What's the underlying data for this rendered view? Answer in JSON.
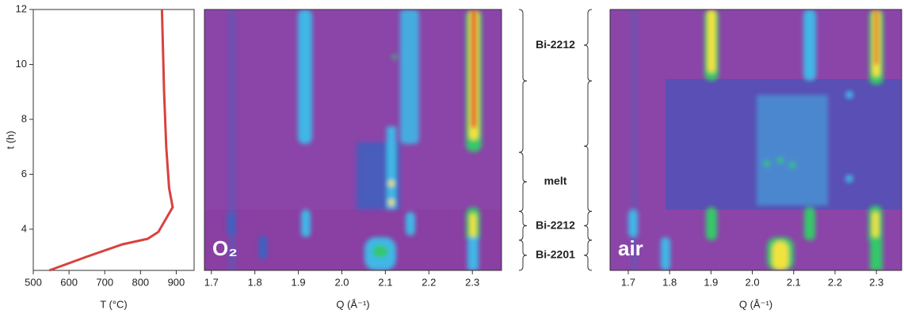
{
  "chart_data": [
    {
      "type": "line",
      "x_label": "T (°C)",
      "y_label": "t (h)",
      "xlim": [
        500,
        950
      ],
      "xticks": [
        500,
        600,
        700,
        800,
        900
      ],
      "ylim": [
        2.5,
        12
      ],
      "yticks": [
        4,
        6,
        8,
        10,
        12
      ],
      "series": [
        {
          "color": "#d9413e",
          "x": [
            545,
            650,
            750,
            820,
            850,
            890,
            880,
            872,
            866,
            862,
            860
          ],
          "values": [
            2.5,
            3.0,
            3.45,
            3.65,
            3.9,
            4.8,
            5.5,
            7,
            9,
            11,
            12
          ]
        }
      ]
    },
    {
      "type": "heatmap",
      "label": "O₂",
      "x_label": "Q (Å⁻¹)",
      "xlim": [
        1.684,
        2.367
      ],
      "xticks": [
        1.7,
        1.8,
        1.9,
        {
          "value": 2,
          "label": "2.0"
        },
        2.1,
        2.2,
        2.3
      ],
      "ylim": [
        2.5,
        12
      ]
    },
    {
      "type": "heatmap",
      "label": "air",
      "x_label": "Q (Å⁻¹)",
      "xlim": [
        1.656,
        2.361
      ],
      "xticks": [
        1.7,
        1.8,
        1.9,
        {
          "value": 2,
          "label": "2.0"
        },
        2.1,
        2.2,
        2.3
      ],
      "ylim": [
        2.5,
        12
      ]
    }
  ],
  "phases": [
    {
      "label": "Bi-2212",
      "left": [
        6.8,
        12
      ],
      "right": [
        9.4,
        12
      ]
    },
    {
      "label": "melt",
      "left": [
        4.65,
        6.8
      ],
      "right": [
        4.65,
        9.4
      ]
    },
    {
      "label": "Bi-2212",
      "left": [
        3.6,
        4.65
      ],
      "right": [
        3.6,
        4.65
      ]
    },
    {
      "label": "Bi-2201",
      "left": [
        2.5,
        3.6
      ],
      "right": [
        2.5,
        3.6
      ]
    }
  ]
}
